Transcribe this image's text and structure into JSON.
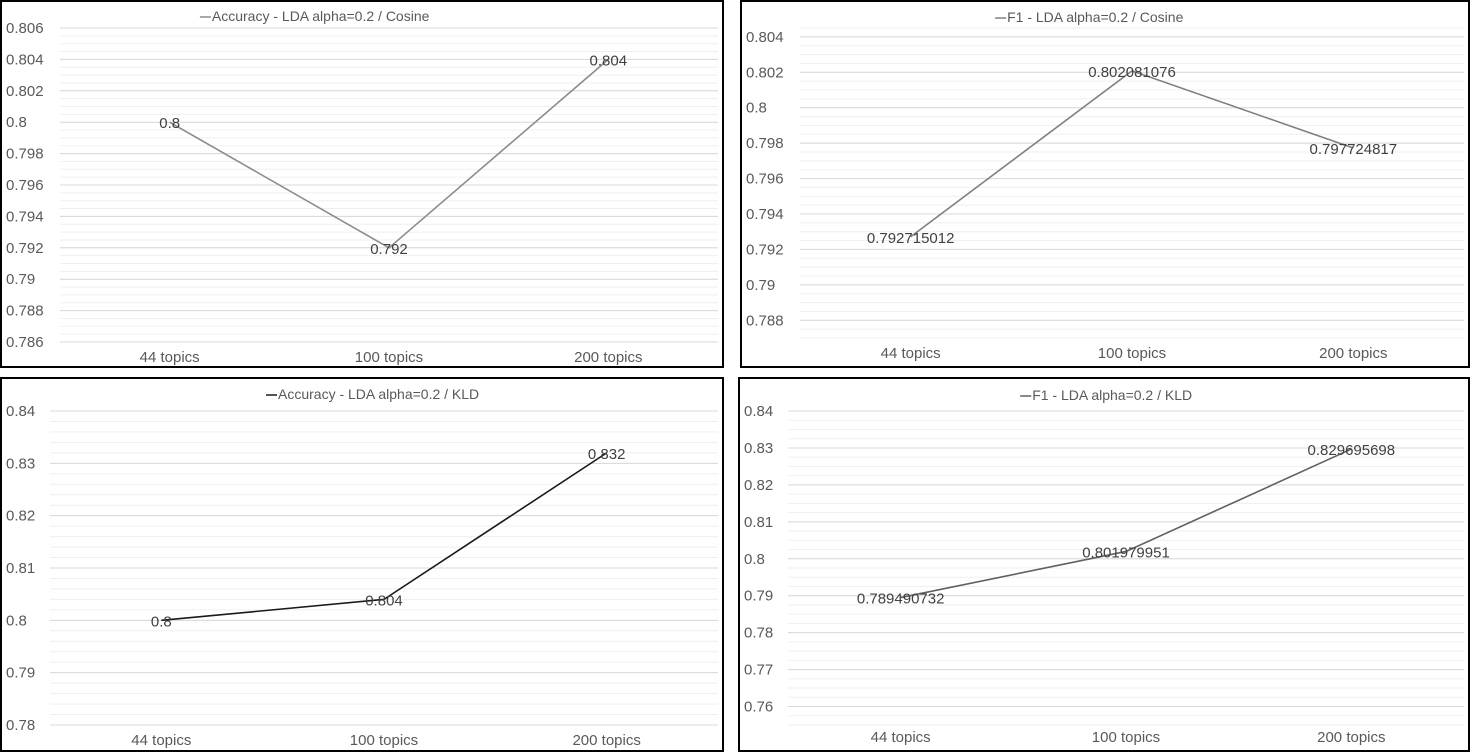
{
  "chart_data": [
    {
      "type": "line",
      "title": "Accuracy - LDA alpha=0.2 / Cosine",
      "categories": [
        "44 topics",
        "100 topics",
        "200 topics"
      ],
      "series": [
        {
          "name": "Accuracy - LDA alpha=0.2 / Cosine",
          "values": [
            0.8,
            0.792,
            0.804
          ],
          "labels": [
            "0.8",
            "0.792",
            "0.804"
          ]
        }
      ],
      "ylim": [
        0.786,
        0.806
      ],
      "yticks": [
        "0.786",
        "0.788",
        "0.79",
        "0.792",
        "0.794",
        "0.796",
        "0.798",
        "0.8",
        "0.802",
        "0.804",
        "0.806"
      ],
      "ytick_values": [
        0.786,
        0.788,
        0.79,
        0.792,
        0.794,
        0.796,
        0.798,
        0.8,
        0.802,
        0.804,
        0.806
      ],
      "minor_grid_step": 0.0005,
      "line_color": "#8c8c8c",
      "grid": true,
      "legend": "top"
    },
    {
      "type": "line",
      "title": "F1 - LDA alpha=0.2 / Cosine",
      "categories": [
        "44 topics",
        "100 topics",
        "200 topics"
      ],
      "series": [
        {
          "name": "F1 - LDA alpha=0.2 / Cosine",
          "values": [
            0.792715012,
            0.802081076,
            0.797724817
          ],
          "labels": [
            "0.792715012",
            "0.802081076",
            "0.797724817"
          ]
        }
      ],
      "ylim": [
        0.787,
        0.8045
      ],
      "yticks": [
        "0.788",
        "0.79",
        "0.792",
        "0.794",
        "0.796",
        "0.798",
        "0.8",
        "0.802",
        "0.804"
      ],
      "ytick_values": [
        0.788,
        0.79,
        0.792,
        0.794,
        0.796,
        0.798,
        0.8,
        0.802,
        0.804
      ],
      "minor_grid_step": 0.0005,
      "line_color": "#7f7f7f",
      "grid": true,
      "legend": "top"
    },
    {
      "type": "line",
      "title": "Accuracy - LDA alpha=0.2 / KLD",
      "categories": [
        "44 topics",
        "100 topics",
        "200 topics"
      ],
      "series": [
        {
          "name": "Accuracy - LDA alpha=0.2 / KLD",
          "values": [
            0.8,
            0.804,
            0.832
          ],
          "labels": [
            "0.8",
            "0.804",
            "0.832"
          ]
        }
      ],
      "ylim": [
        0.78,
        0.84
      ],
      "yticks": [
        "0.78",
        "0.79",
        "0.8",
        "0.81",
        "0.82",
        "0.83",
        "0.84"
      ],
      "ytick_values": [
        0.78,
        0.79,
        0.8,
        0.81,
        0.82,
        0.83,
        0.84
      ],
      "minor_grid_step": 0.002,
      "line_color": "#1a1a1a",
      "grid": true,
      "legend": "top"
    },
    {
      "type": "line",
      "title": "F1 - LDA alpha=0.2 / KLD",
      "categories": [
        "44 topics",
        "100 topics",
        "200 topics"
      ],
      "series": [
        {
          "name": "F1 - LDA alpha=0.2 / KLD",
          "values": [
            0.789490732,
            0.801979951,
            0.829695698
          ],
          "labels": [
            "0.789490732",
            "0.801979951",
            "0.829695698"
          ]
        }
      ],
      "ylim": [
        0.755,
        0.84
      ],
      "yticks": [
        "0.76",
        "0.77",
        "0.78",
        "0.79",
        "0.8",
        "0.81",
        "0.82",
        "0.83",
        "0.84"
      ],
      "ytick_values": [
        0.76,
        0.77,
        0.78,
        0.79,
        0.8,
        0.81,
        0.82,
        0.83,
        0.84
      ],
      "minor_grid_step": 0.0025,
      "line_color": "#606060",
      "grid": true,
      "legend": "top"
    }
  ]
}
